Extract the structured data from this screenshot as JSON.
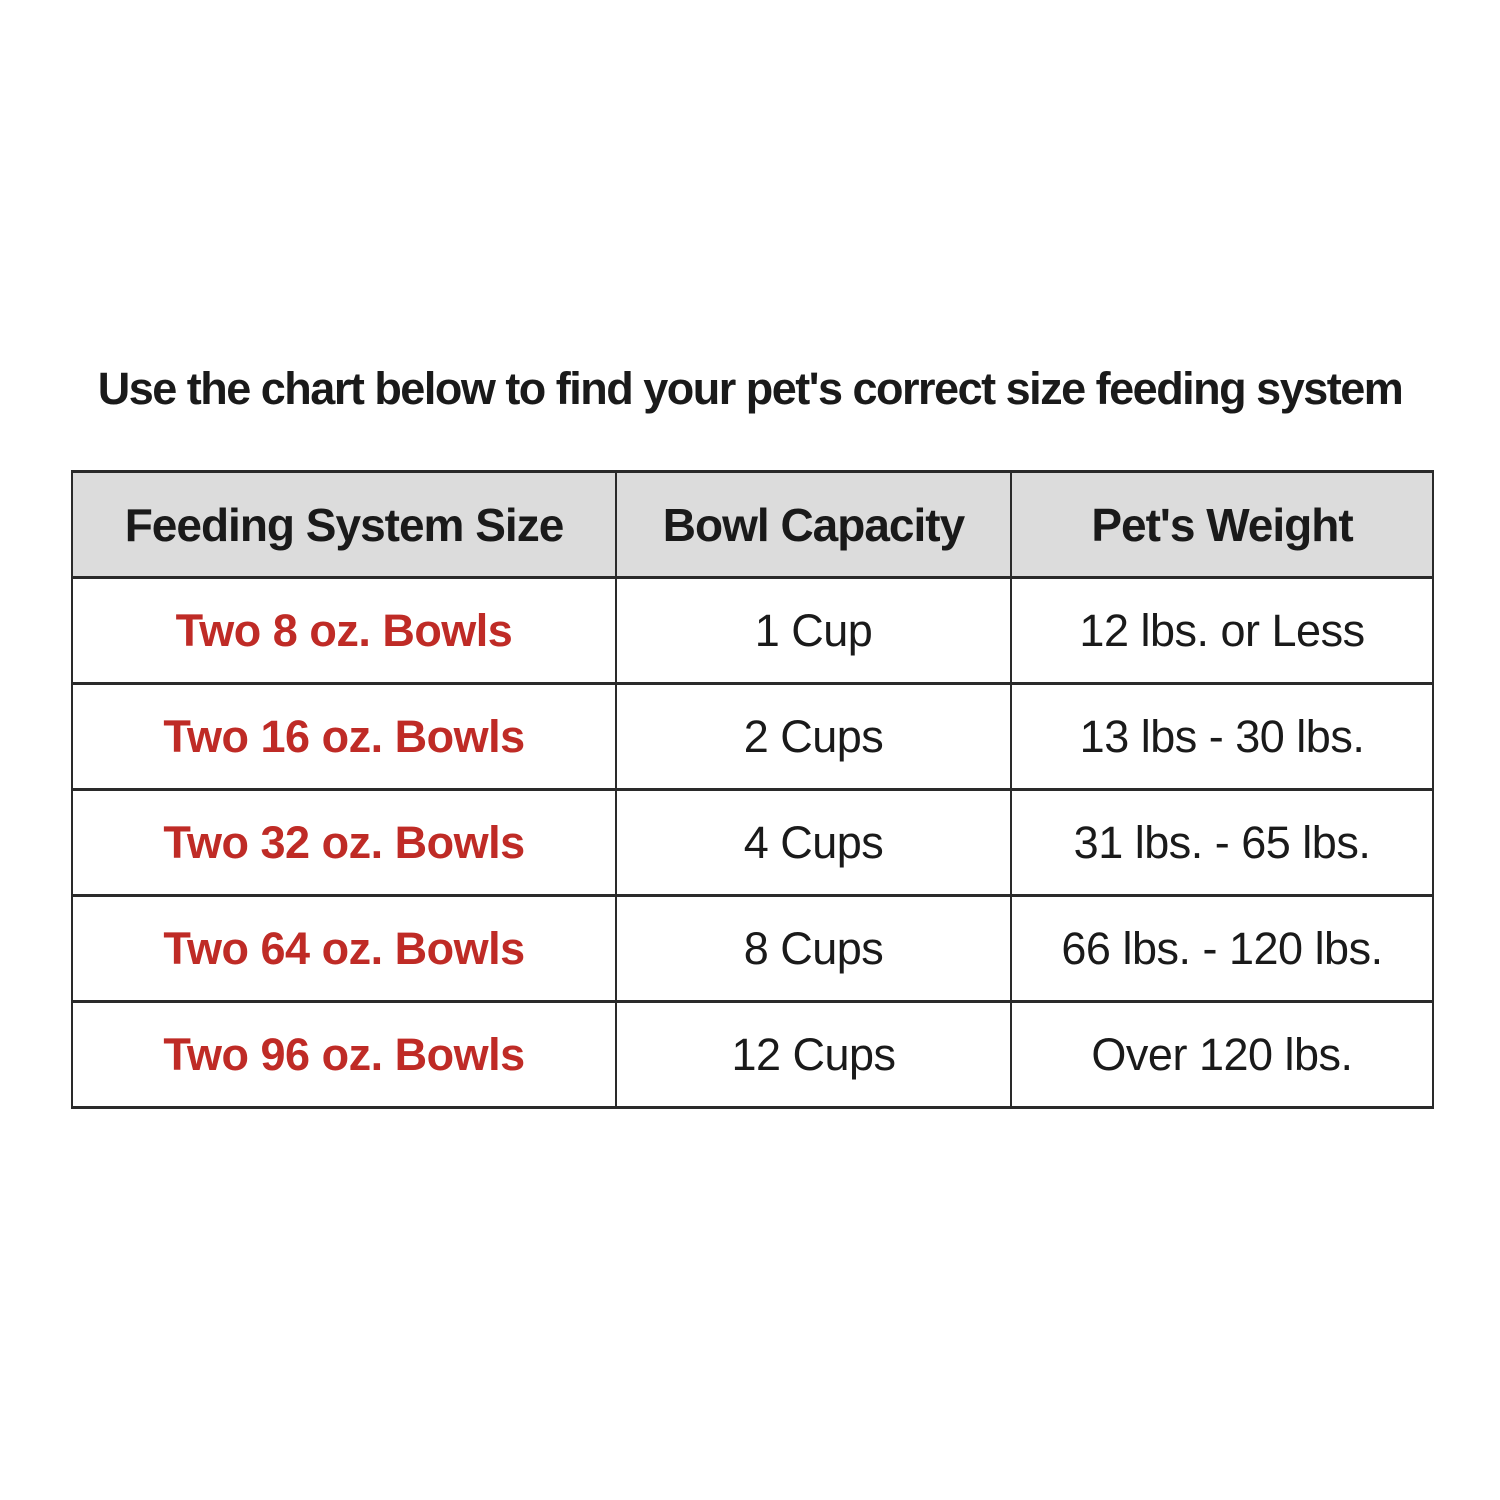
{
  "title": "Use the chart below to find your pet's correct size feeding system",
  "chart_data": {
    "type": "table",
    "title": "Use the chart below to find your pet's correct size feeding system",
    "columns": [
      "Feeding System Size",
      "Bowl Capacity",
      "Pet's Weight"
    ],
    "rows": [
      {
        "size": "Two 8 oz. Bowls",
        "capacity": "1 Cup",
        "weight": "12 lbs. or Less"
      },
      {
        "size": "Two 16 oz. Bowls",
        "capacity": "2 Cups",
        "weight": "13 lbs - 30 lbs."
      },
      {
        "size": "Two 32 oz. Bowls",
        "capacity": "4 Cups",
        "weight": "31 lbs. - 65 lbs."
      },
      {
        "size": "Two 64 oz. Bowls",
        "capacity": "8 Cups",
        "weight": "66 lbs. - 120 lbs."
      },
      {
        "size": "Two 96 oz. Bowls",
        "capacity": "12 Cups",
        "weight": "Over 120 lbs."
      }
    ]
  },
  "colors": {
    "accent_red": "#bf2b26",
    "header_bg": "#dcdcdc",
    "border": "#2a2a2a",
    "text": "#1a1a1a",
    "background": "#ffffff"
  }
}
